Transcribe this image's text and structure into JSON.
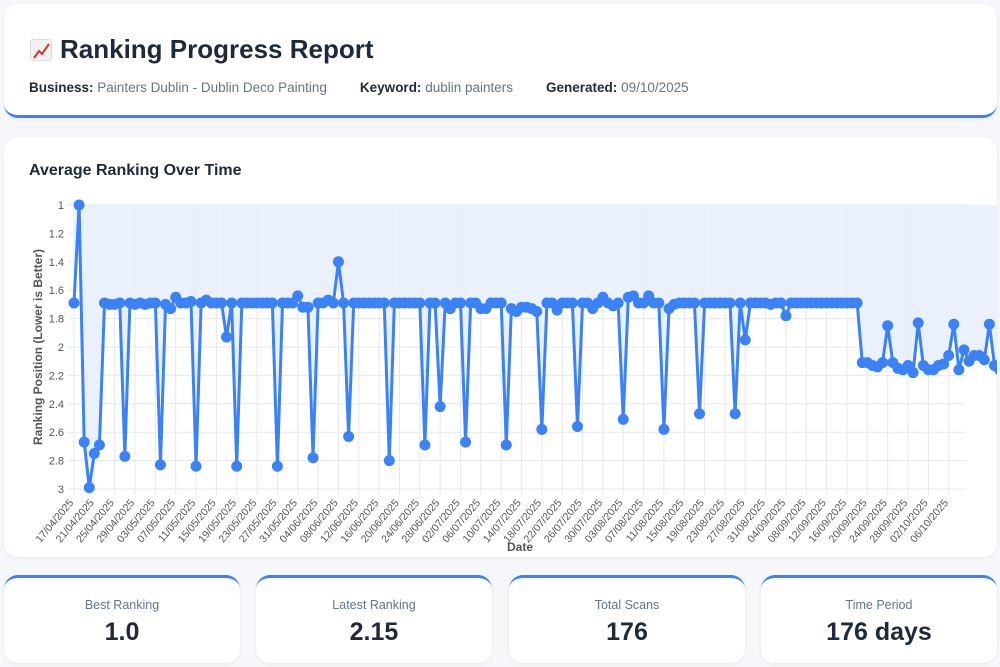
{
  "header": {
    "title": "Ranking Progress Report",
    "title_icon": "chart-increasing-icon",
    "business_label": "Business:",
    "business_value": "Painters Dublin - Dublin Deco Painting",
    "keyword_label": "Keyword:",
    "keyword_value": "dublin painters",
    "generated_label": "Generated:",
    "generated_value": "09/10/2025"
  },
  "chart_section": {
    "title": "Average Ranking Over Time"
  },
  "stats": [
    {
      "label": "Best Ranking",
      "value": "1.0"
    },
    {
      "label": "Latest Ranking",
      "value": "2.15"
    },
    {
      "label": "Total Scans",
      "value": "176"
    },
    {
      "label": "Time Period",
      "value": "176 days"
    }
  ],
  "colors": {
    "accent": "#3b82f6",
    "line": "#3b82f6",
    "fill": "#e8f0fd"
  },
  "chart_data": {
    "type": "line",
    "title": "Average Ranking Over Time",
    "xlabel": "Date",
    "ylabel": "Ranking Position (Lower is Better)",
    "ylim": [
      1,
      3
    ],
    "y_reversed": true,
    "y_ticks": [
      "1",
      "1.2",
      "1.4",
      "1.6",
      "1.8",
      "2",
      "2.2",
      "2.4",
      "2.6",
      "2.8",
      "3"
    ],
    "grid": true,
    "fill": true,
    "x_tick_labels": [
      "17/04/2025",
      "21/04/2025",
      "25/04/2025",
      "29/04/2025",
      "03/05/2025",
      "07/05/2025",
      "11/05/2025",
      "15/05/2025",
      "19/05/2025",
      "23/05/2025",
      "27/05/2025",
      "31/05/2025",
      "04/06/2025",
      "08/06/2025",
      "12/06/2025",
      "16/06/2025",
      "20/06/2025",
      "24/06/2025",
      "28/06/2025",
      "02/07/2025",
      "06/07/2025",
      "10/07/2025",
      "14/07/2025",
      "18/07/2025",
      "22/07/2025",
      "26/07/2025",
      "30/07/2025",
      "03/08/2025",
      "07/08/2025",
      "11/08/2025",
      "15/08/2025",
      "19/08/2025",
      "23/08/2025",
      "27/08/2025",
      "31/08/2025",
      "04/09/2025",
      "08/09/2025",
      "12/09/2025",
      "16/09/2025",
      "20/09/2025",
      "24/09/2025",
      "28/09/2025",
      "02/10/2025",
      "06/10/2025"
    ],
    "series": [
      {
        "name": "Average Ranking",
        "start_date": "17/04/2025",
        "values": [
          1.69,
          1.0,
          2.67,
          2.99,
          2.75,
          2.69,
          1.69,
          1.7,
          1.7,
          1.69,
          2.77,
          1.69,
          1.7,
          1.69,
          1.7,
          1.69,
          1.69,
          2.83,
          1.7,
          1.73,
          1.65,
          1.69,
          1.69,
          1.68,
          2.84,
          1.69,
          1.67,
          1.69,
          1.69,
          1.69,
          1.93,
          1.69,
          2.84,
          1.69,
          1.69,
          1.69,
          1.69,
          1.69,
          1.69,
          1.69,
          2.84,
          1.69,
          1.69,
          1.69,
          1.64,
          1.72,
          1.72,
          2.78,
          1.69,
          1.69,
          1.67,
          1.69,
          1.4,
          1.69,
          2.63,
          1.69,
          1.69,
          1.69,
          1.69,
          1.69,
          1.69,
          1.69,
          2.8,
          1.69,
          1.69,
          1.69,
          1.69,
          1.69,
          1.69,
          2.69,
          1.69,
          1.69,
          2.42,
          1.69,
          1.73,
          1.69,
          1.69,
          2.67,
          1.69,
          1.69,
          1.73,
          1.73,
          1.69,
          1.69,
          1.69,
          2.69,
          1.73,
          1.75,
          1.72,
          1.72,
          1.73,
          1.75,
          2.58,
          1.69,
          1.69,
          1.74,
          1.69,
          1.69,
          1.69,
          2.56,
          1.69,
          1.69,
          1.73,
          1.69,
          1.65,
          1.69,
          1.71,
          1.69,
          2.51,
          1.65,
          1.64,
          1.69,
          1.69,
          1.64,
          1.69,
          1.69,
          2.58,
          1.73,
          1.7,
          1.69,
          1.69,
          1.69,
          1.69,
          2.47,
          1.69,
          1.69,
          1.69,
          1.69,
          1.69,
          1.69,
          2.47,
          1.69,
          1.95,
          1.69,
          1.69,
          1.69,
          1.69,
          1.7,
          1.69,
          1.69,
          1.78,
          1.69,
          1.69,
          1.69,
          1.69,
          1.69,
          1.69,
          1.69,
          1.69,
          1.69,
          1.69,
          1.69,
          1.69,
          1.69,
          1.69,
          2.11,
          2.11,
          2.13,
          2.14,
          2.11,
          1.85,
          2.11,
          2.15,
          2.16,
          2.13,
          2.18,
          1.83,
          2.13,
          2.16,
          2.16,
          2.13,
          2.12,
          2.06,
          1.84,
          2.16,
          2.02,
          2.1,
          2.06,
          2.06,
          2.09,
          1.84,
          2.13,
          2.16,
          2.11,
          2.15
        ]
      }
    ]
  }
}
